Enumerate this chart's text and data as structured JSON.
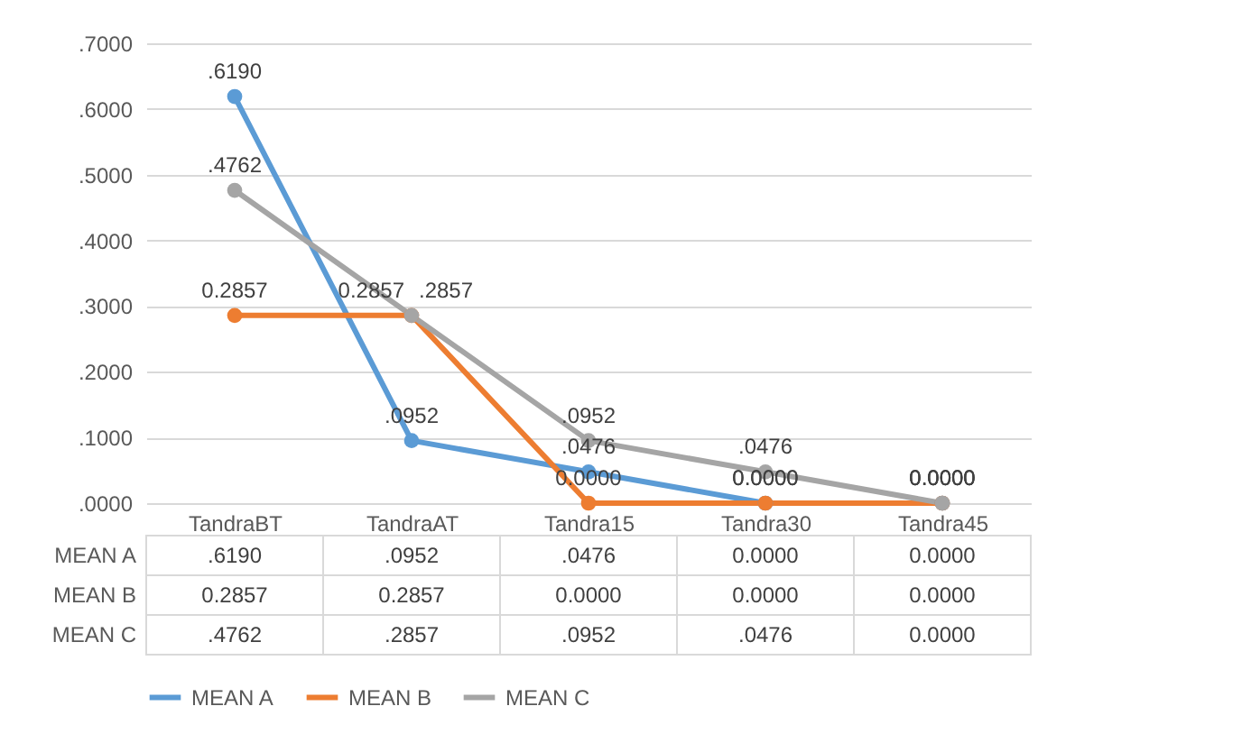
{
  "chart_data": {
    "type": "line",
    "categories": [
      "TandraBT",
      "TandraAT",
      "Tandra15",
      "Tandra30",
      "Tandra45"
    ],
    "series": [
      {
        "name": "MEAN A",
        "color": "#5b9bd5",
        "values": [
          0.619,
          0.0952,
          0.0476,
          0,
          0
        ],
        "value_labels": [
          ".6190",
          ".0952",
          ".0476",
          "0.0000",
          "0.0000"
        ]
      },
      {
        "name": "MEAN B",
        "color": "#ed7d31",
        "values": [
          0.2857,
          0.2857,
          0,
          0,
          0
        ],
        "value_labels": [
          "0.2857",
          "0.2857",
          "0.0000",
          "0.0000",
          "0.0000"
        ]
      },
      {
        "name": "MEAN C",
        "color": "#a5a5a5",
        "values": [
          0.4762,
          0.2857,
          0.0952,
          0.0476,
          0
        ],
        "value_labels": [
          ".4762",
          ".2857",
          ".0952",
          ".0476",
          "0.0000"
        ]
      }
    ],
    "ylim": [
      0,
      0.7
    ],
    "yticks": [
      {
        "value": 0,
        "label": ".0000"
      },
      {
        "value": 0.1,
        "label": ".1000"
      },
      {
        "value": 0.2,
        "label": ".2000"
      },
      {
        "value": 0.3,
        "label": ".3000"
      },
      {
        "value": 0.4,
        "label": ".4000"
      },
      {
        "value": 0.5,
        "label": ".5000"
      },
      {
        "value": 0.6,
        "label": ".6000"
      },
      {
        "value": 0.7,
        "label": ".7000"
      }
    ],
    "grid": "y",
    "legend": "bottom",
    "marker": "circle",
    "line_style": "solid"
  }
}
